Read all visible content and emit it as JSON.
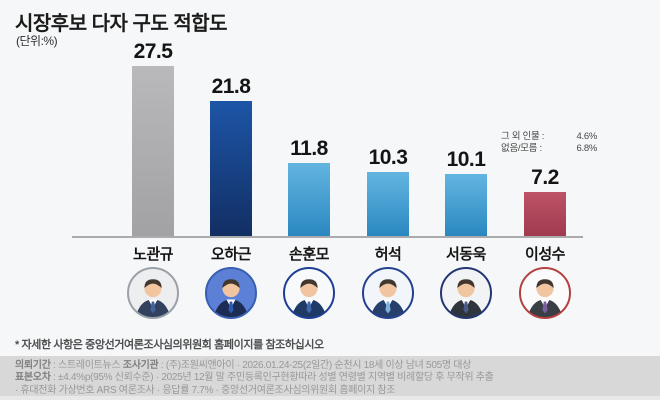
{
  "header": {
    "title": "시장후보 다자 구도 적합도",
    "unit": "(단위:%)"
  },
  "chart_data": {
    "type": "bar",
    "title": "시장후보 다자 구도 적합도",
    "unit": "%",
    "categories": [
      "노관규",
      "오하근",
      "손훈모",
      "허석",
      "서동욱",
      "이성수"
    ],
    "values": [
      27.5,
      21.8,
      11.8,
      10.3,
      10.1,
      7.2
    ],
    "value_labels": [
      "27.5",
      "21.8",
      "11.8",
      "10.3",
      "10.1",
      "7.2"
    ],
    "ylim": [
      0,
      30
    ],
    "grid": false,
    "legend": false,
    "bar_colors": [
      {
        "top": "#b9b9bb",
        "bottom": "#a2a2a4"
      },
      {
        "top": "#1d55a7",
        "bottom": "#122f63"
      },
      {
        "top": "#63b5e1",
        "bottom": "#2a88c0"
      },
      {
        "top": "#63b5e1",
        "bottom": "#2a88c0"
      },
      {
        "top": "#63b5e1",
        "bottom": "#2a88c0"
      },
      {
        "top": "#bd5468",
        "bottom": "#a03a4e"
      }
    ],
    "annotations": [
      {
        "label": "그 외 인물 :",
        "value": "4.6%"
      },
      {
        "label": "없음/모름 :",
        "value": "6.8%"
      }
    ]
  },
  "candidates": [
    {
      "name": "노관규",
      "photo": {
        "bg": "#eceef0",
        "ring": "#9aa0a8",
        "suit": "#31415e",
        "tie": "#44619c"
      }
    },
    {
      "name": "오하근",
      "photo": {
        "bg": "#5b80d6",
        "ring": "#3a5fb2",
        "suit": "#1c2c52",
        "tie": "#2f5ab4"
      }
    },
    {
      "name": "손훈모",
      "photo": {
        "bg": "#f7f9fb",
        "ring": "#1e3e96",
        "suit": "#203a66",
        "tie": "#3e68b0"
      }
    },
    {
      "name": "허석",
      "photo": {
        "bg": "#f2f6fa",
        "ring": "#24408f",
        "suit": "#27406b",
        "tie": "#7db3dc"
      }
    },
    {
      "name": "서동욱",
      "photo": {
        "bg": "#f2f3f5",
        "ring": "#233672",
        "suit": "#30343c",
        "tie": "#4a5a8a"
      }
    },
    {
      "name": "이성수",
      "photo": {
        "bg": "#fbfbfb",
        "ring": "#b4403f",
        "suit": "#3a3f46",
        "tie": "#7a5fa0"
      }
    }
  ],
  "footnote": "* 자세한 사항은 중앙선거여론조사심의위원회 홈페이지를 참조하십시오",
  "footer": {
    "lines": [
      [
        {
          "bold": true,
          "text": "의뢰기간"
        },
        {
          "bold": false,
          "text": " : 스트레이트뉴스  "
        },
        {
          "bold": true,
          "text": "조사기관"
        },
        {
          "bold": false,
          "text": " : (주)조원씨앤아이     · 2026.01.24-25(2일간) 순천시 18세 이상 남녀 505명 대상"
        }
      ],
      [
        {
          "bold": true,
          "text": "표본오차"
        },
        {
          "bold": false,
          "text": " : ±4.4%p(95% 신뢰수준)    · 2025년 12월 말 주민등록인구현황따라 성별 연령별 지역별 비례할당 후 무작위 추출"
        }
      ],
      [
        {
          "bold": false,
          "text": "· 휴대전화 가상번호 ARS 여론조사    · 응답률 7.7%    · 중앙선거여론조사심의위원회 홈페이지 참조"
        }
      ]
    ]
  }
}
